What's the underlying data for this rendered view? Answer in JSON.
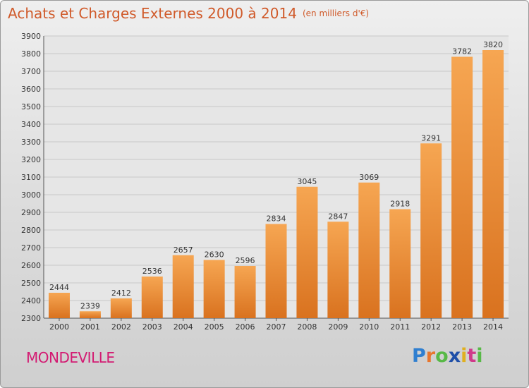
{
  "header": {
    "title": "Achats et Charges Externes 2000 à 2014",
    "subtitle": "(en milliers d'€)"
  },
  "location": {
    "name": "MONDEVILLE"
  },
  "brand": {
    "name": "Proxiti",
    "letter_colors": [
      "#2f7fd0",
      "#e8762d",
      "#58b947",
      "#1f4fa8",
      "#e0b020",
      "#d03a8a",
      "#58b947"
    ]
  },
  "colors": {
    "bar_light": "#f6a652",
    "bar_dark": "#d9721f",
    "axis_text": "#333333",
    "grid": "#c8c8c8"
  },
  "chart_data": {
    "type": "bar",
    "title": "Achats et Charges Externes 2000 à 2014",
    "subtitle": "(en milliers d'€)",
    "categories": [
      "2000",
      "2001",
      "2002",
      "2003",
      "2004",
      "2005",
      "2006",
      "2007",
      "2008",
      "2009",
      "2010",
      "2011",
      "2012",
      "2013",
      "2014"
    ],
    "values": [
      2444,
      2339,
      2412,
      2536,
      2657,
      2630,
      2596,
      2834,
      3045,
      2847,
      3069,
      2918,
      3291,
      3782,
      3820
    ],
    "ylim": [
      2300,
      3900
    ],
    "yticks": [
      2300,
      2400,
      2500,
      2600,
      2700,
      2800,
      2900,
      3000,
      3100,
      3200,
      3300,
      3400,
      3500,
      3600,
      3700,
      3800,
      3900
    ],
    "grid": true,
    "data_labels": true
  }
}
